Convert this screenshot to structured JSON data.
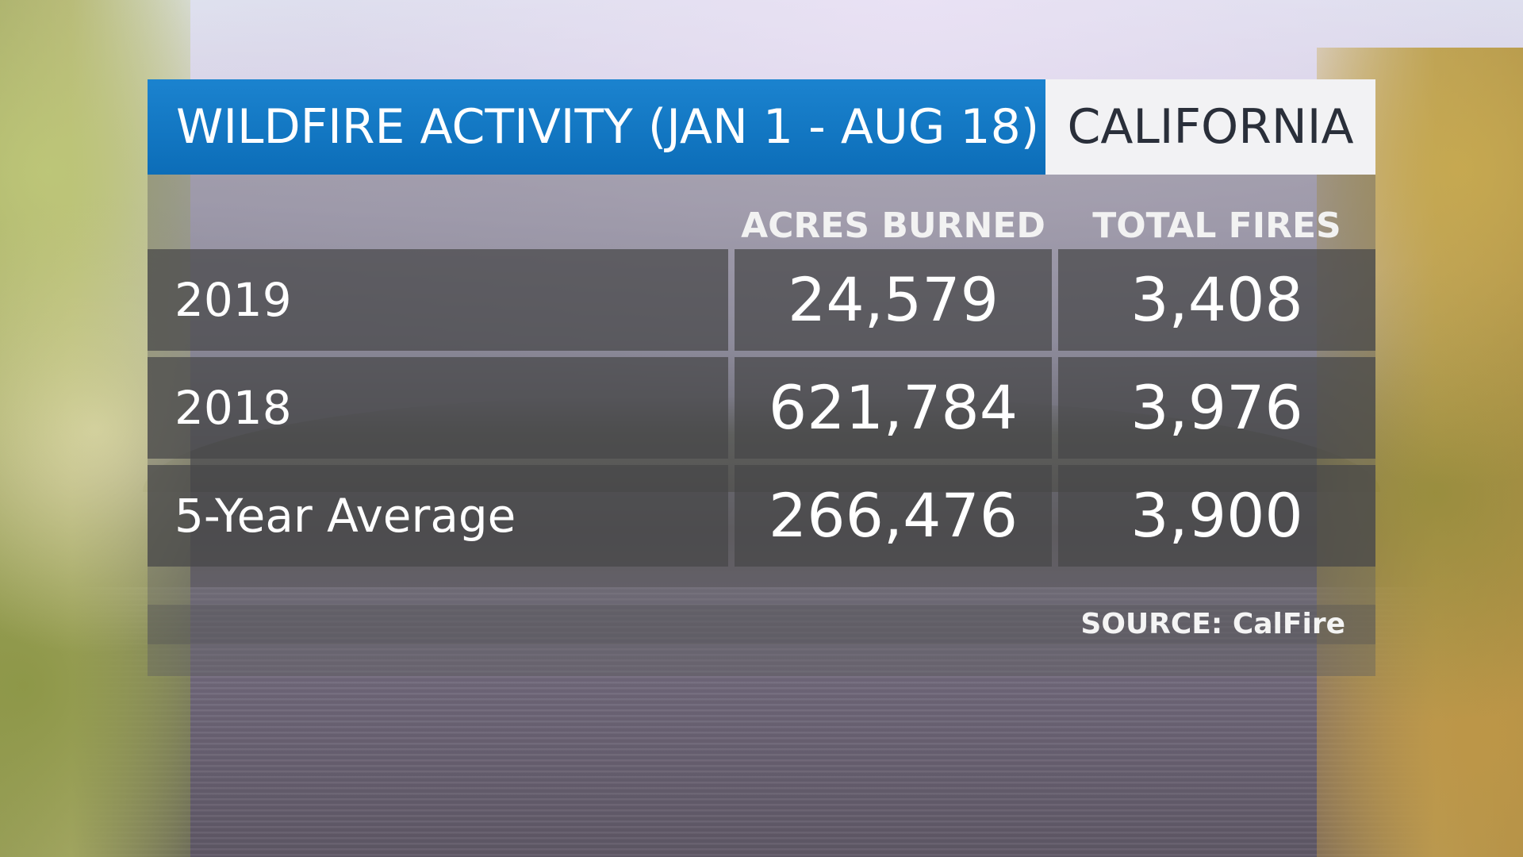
{
  "header": {
    "title": "WILDFIRE ACTIVITY (JAN 1 - AUG 18)",
    "region": "CALIFORNIA"
  },
  "table": {
    "columns": [
      "ACRES BURNED",
      "TOTAL FIRES"
    ],
    "rows": [
      {
        "label": "2019",
        "acres_burned": "24,579",
        "total_fires": "3,408"
      },
      {
        "label": "2018",
        "acres_burned": "621,784",
        "total_fires": "3,976"
      },
      {
        "label": "5-Year Average",
        "acres_burned": "266,476",
        "total_fires": "3,900"
      }
    ]
  },
  "footer": {
    "source": "SOURCE: CalFire"
  },
  "colors": {
    "title_bar": "#1b83cf",
    "region_box": "#f2f2f4",
    "cell_bg": "#464648"
  }
}
